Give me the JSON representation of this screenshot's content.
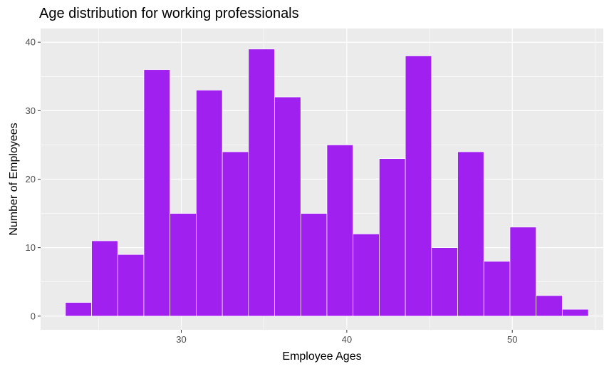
{
  "chart_data": {
    "type": "bar",
    "title": "Age distribution for working professionals",
    "xlabel": "Employee Ages",
    "ylabel": "Number of Employees",
    "colors": {
      "bar_fill": "#A020F0",
      "bar_border": "#ffffff",
      "panel_bg": "#EBEBEB",
      "grid": "#ffffff"
    },
    "grid": true,
    "bin_width": 1.58,
    "bin_starts": [
      23.0,
      24.58,
      26.16,
      27.74,
      29.32,
      30.9,
      32.48,
      34.06,
      35.64,
      37.22,
      38.8,
      40.38,
      41.96,
      43.54,
      45.12,
      46.7,
      48.28,
      49.86,
      51.44,
      53.02
    ],
    "values": [
      2,
      11,
      9,
      36,
      15,
      33,
      24,
      39,
      32,
      15,
      25,
      12,
      23,
      38,
      10,
      24,
      8,
      13,
      3,
      1
    ],
    "xlim": [
      21.5,
      55.5
    ],
    "ylim": [
      -2,
      42
    ],
    "x_ticks": [
      30,
      40,
      50
    ],
    "x_tick_labels": [
      "30",
      "40",
      "50"
    ],
    "y_ticks": [
      0,
      10,
      20,
      30,
      40
    ],
    "y_tick_labels": [
      "0",
      "10",
      "20",
      "30",
      "40"
    ]
  }
}
